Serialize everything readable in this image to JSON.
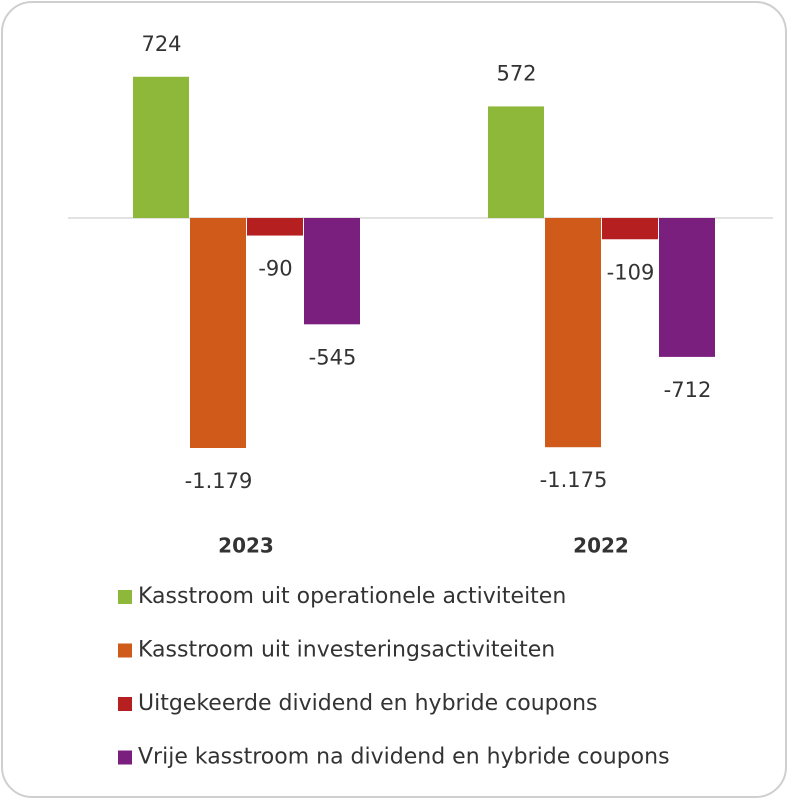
{
  "chart_data": {
    "type": "bar",
    "categories": [
      "2023",
      "2022"
    ],
    "series": [
      {
        "name": "Kasstroom uit operationele activiteiten",
        "color": "#8db83a",
        "values": [
          724,
          572
        ]
      },
      {
        "name": "Kasstroom uit investeringsactiviteiten",
        "color": "#d05a1a",
        "values": [
          -1179,
          -1175
        ],
        "value_labels": [
          "-1.179",
          "-1.175"
        ]
      },
      {
        "name": "Uitgekeerde dividend en hybride coupons",
        "color": "#b51f1f",
        "values": [
          -90,
          -109
        ]
      },
      {
        "name": "Vrije kasstroom na dividend en hybride coupons",
        "color": "#7b1f7e",
        "values": [
          -545,
          -712
        ]
      }
    ],
    "legend": "bottom"
  }
}
